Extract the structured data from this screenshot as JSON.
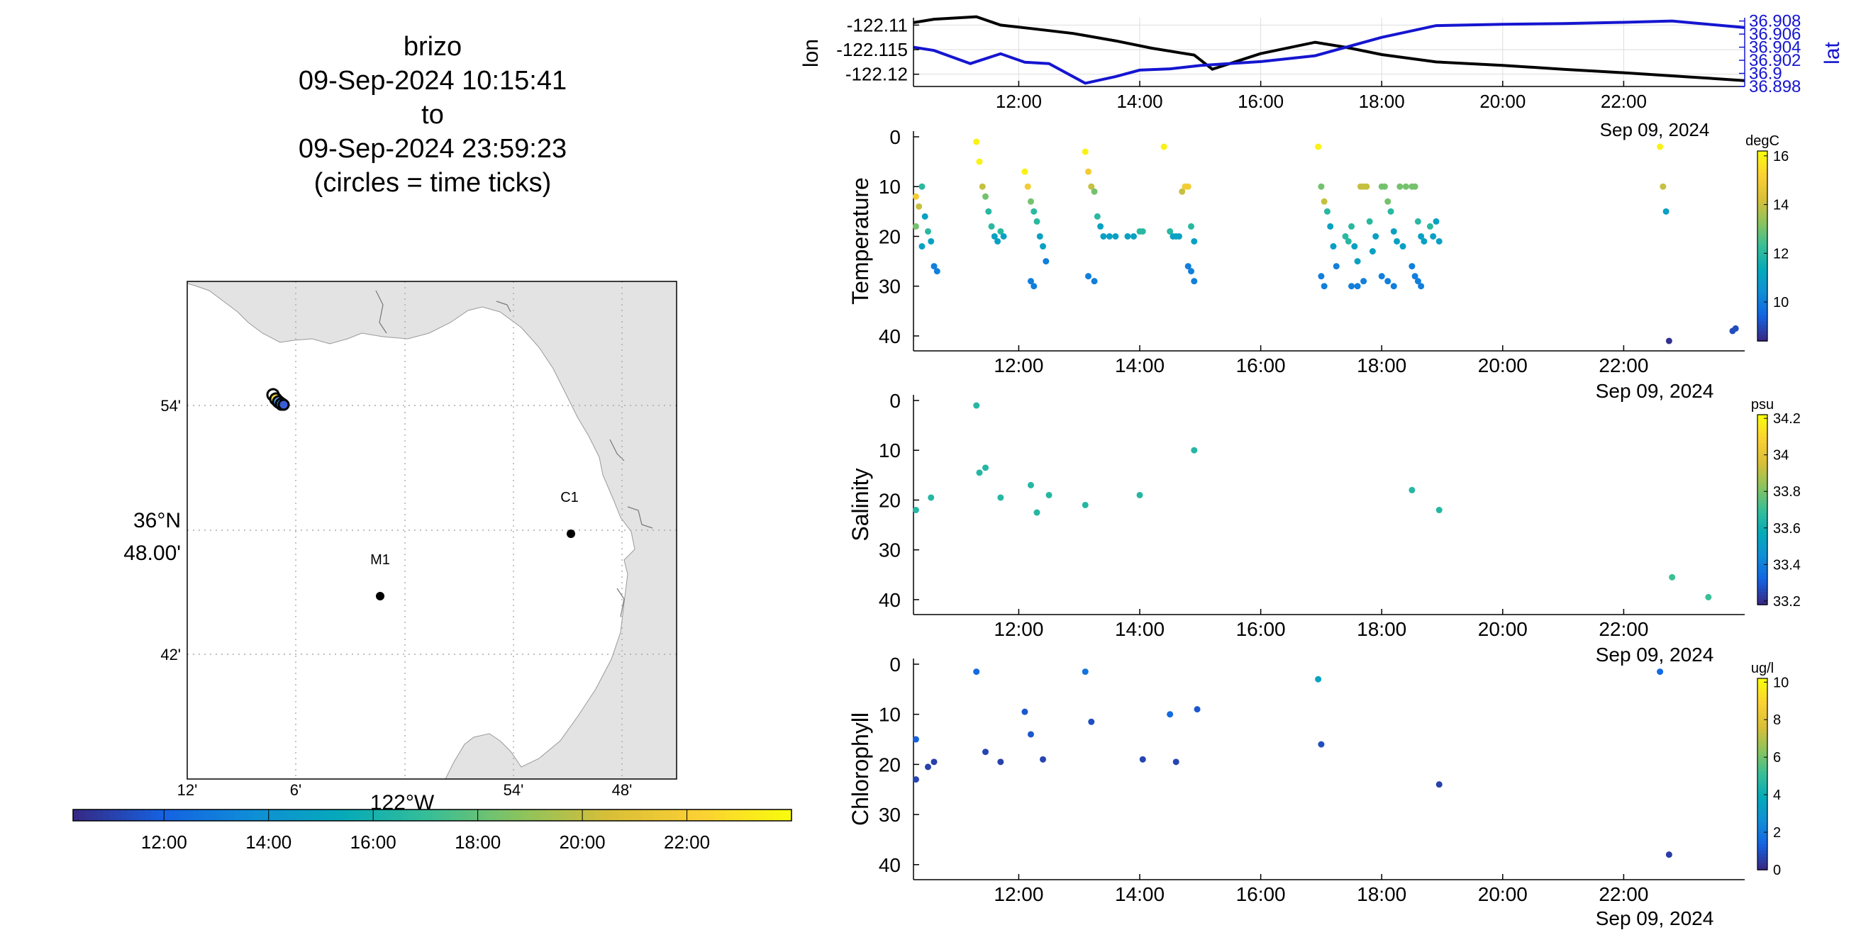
{
  "title_lines": [
    "brizo",
    "09-Sep-2024 10:15:41",
    "to",
    "09-Sep-2024 23:59:23",
    "(circles = time ticks)"
  ],
  "colors": {
    "track_lon": "#000000",
    "track_lat": "#1515d0",
    "land": "#e3e3e3",
    "grid": "#aaaaaa"
  },
  "map": {
    "lat_labels": [
      "54'",
      "42'"
    ],
    "lat_center_label": [
      "36°N",
      "48.00'"
    ],
    "lon_labels": [
      "12'",
      "6'",
      "54'",
      "48'"
    ],
    "lon_center_label": "122°W",
    "stations": [
      {
        "name": "C1",
        "lon": -121.84,
        "lat": 36.8
      },
      {
        "name": "M1",
        "lon": -122.02,
        "lat": 36.75
      }
    ],
    "vehicle_lon": -122.114,
    "vehicle_lat": 36.9
  },
  "time_colorbar": {
    "ticks": [
      "12:00",
      "14:00",
      "16:00",
      "18:00",
      "20:00",
      "22:00"
    ]
  },
  "chart_data": [
    {
      "type": "line",
      "ylabel": "lon",
      "y2label": "lat",
      "x_ticks": [
        "12:00",
        "14:00",
        "16:00",
        "18:00",
        "20:00",
        "22:00"
      ],
      "x_date_label": "Sep 09, 2024",
      "y_ticks": [
        "-122.11",
        "-122.115",
        "-122.12"
      ],
      "y2_ticks": [
        "36.908",
        "36.906",
        "36.904",
        "36.902",
        "36.9",
        "36.898"
      ],
      "xlim": [
        10.26,
        24.0
      ],
      "ylim": [
        -122.1225,
        -122.1085
      ],
      "y2lim": [
        36.898,
        36.9085
      ],
      "series": [
        {
          "name": "lon",
          "x": [
            10.26,
            10.6,
            11.3,
            11.7,
            12.2,
            12.9,
            13.6,
            14.2,
            14.9,
            15.2,
            16.0,
            16.9,
            17.4,
            18.0,
            18.9,
            20.0,
            21.0,
            22.0,
            23.0,
            24.0
          ],
          "values": [
            -122.1095,
            -122.1088,
            -122.1083,
            -122.11,
            -122.1107,
            -122.1117,
            -122.1132,
            -122.1147,
            -122.1161,
            -122.119,
            -122.1158,
            -122.1135,
            -122.1145,
            -122.116,
            -122.1175,
            -122.1182,
            -122.119,
            -122.1197,
            -122.1205,
            -122.1213
          ]
        },
        {
          "name": "lat",
          "x": [
            10.26,
            10.6,
            11.2,
            11.7,
            12.1,
            12.5,
            13.1,
            13.6,
            14.0,
            14.5,
            15.0,
            16.0,
            16.9,
            18.0,
            18.9,
            20.0,
            21.0,
            22.0,
            22.8,
            24.0
          ],
          "values": [
            36.904,
            36.9035,
            36.9015,
            36.903,
            36.9017,
            36.9015,
            36.8985,
            36.8995,
            36.9005,
            36.9007,
            36.9012,
            36.9018,
            36.9027,
            36.9055,
            36.9073,
            36.9075,
            36.9076,
            36.9078,
            36.908,
            36.907
          ]
        }
      ]
    },
    {
      "type": "scatter",
      "ylabel": "Temperature",
      "colorbar_unit": "degC",
      "colorbar_ticks": [
        "16",
        "14",
        "12",
        "10"
      ],
      "clim": [
        8.4,
        16.2
      ],
      "x_ticks": [
        "12:00",
        "14:00",
        "16:00",
        "18:00",
        "20:00",
        "22:00"
      ],
      "x_date_label": "Sep 09, 2024",
      "y_ticks": [
        "0",
        "10",
        "20",
        "30",
        "40"
      ],
      "xlim": [
        10.26,
        24.0
      ],
      "ylim": [
        0,
        43
      ],
      "points": [
        [
          10.3,
          12,
          15
        ],
        [
          10.35,
          14,
          14
        ],
        [
          10.4,
          10,
          12
        ],
        [
          10.45,
          16,
          11
        ],
        [
          10.5,
          19,
          12
        ],
        [
          10.55,
          21,
          11
        ],
        [
          10.6,
          26,
          10
        ],
        [
          10.65,
          27,
          10
        ],
        [
          10.3,
          18,
          13
        ],
        [
          10.4,
          22,
          11
        ],
        [
          11.3,
          1,
          16
        ],
        [
          11.35,
          5,
          16
        ],
        [
          11.4,
          10,
          14
        ],
        [
          11.45,
          12,
          13
        ],
        [
          11.5,
          15,
          12
        ],
        [
          11.55,
          18,
          12
        ],
        [
          11.6,
          20,
          11
        ],
        [
          11.65,
          21,
          11
        ],
        [
          11.7,
          19,
          12
        ],
        [
          11.75,
          20,
          11
        ],
        [
          12.1,
          7,
          16
        ],
        [
          12.15,
          10,
          15
        ],
        [
          12.2,
          13,
          13
        ],
        [
          12.25,
          15,
          12
        ],
        [
          12.3,
          17,
          12
        ],
        [
          12.35,
          20,
          11
        ],
        [
          12.4,
          22,
          11
        ],
        [
          12.45,
          25,
          10
        ],
        [
          12.2,
          29,
          10
        ],
        [
          12.25,
          30,
          10
        ],
        [
          13.1,
          3,
          16
        ],
        [
          13.15,
          7,
          15
        ],
        [
          13.2,
          10,
          14
        ],
        [
          13.25,
          11,
          13
        ],
        [
          13.3,
          16,
          12
        ],
        [
          13.35,
          18,
          11
        ],
        [
          13.4,
          20,
          11
        ],
        [
          13.5,
          20,
          11
        ],
        [
          13.6,
          20,
          11
        ],
        [
          13.15,
          28,
          10
        ],
        [
          13.25,
          29,
          10
        ],
        [
          13.8,
          20,
          11
        ],
        [
          13.9,
          20,
          11
        ],
        [
          14.0,
          19,
          12
        ],
        [
          14.05,
          19,
          12
        ],
        [
          14.4,
          2,
          16
        ],
        [
          14.5,
          19,
          12
        ],
        [
          14.55,
          20,
          11
        ],
        [
          14.6,
          20,
          11
        ],
        [
          14.65,
          20,
          11
        ],
        [
          14.7,
          11,
          14
        ],
        [
          14.75,
          10,
          15
        ],
        [
          14.8,
          10,
          15
        ],
        [
          14.85,
          18,
          12
        ],
        [
          14.9,
          21,
          11
        ],
        [
          14.8,
          26,
          10
        ],
        [
          14.85,
          27,
          10
        ],
        [
          14.9,
          29,
          10
        ],
        [
          16.95,
          2,
          16
        ],
        [
          17.0,
          10,
          13
        ],
        [
          17.05,
          13,
          14
        ],
        [
          17.1,
          15,
          12
        ],
        [
          17.15,
          18,
          11
        ],
        [
          17.2,
          22,
          11
        ],
        [
          17.25,
          26,
          10
        ],
        [
          17.0,
          28,
          10
        ],
        [
          17.05,
          30,
          10
        ],
        [
          17.4,
          20,
          12
        ],
        [
          17.45,
          21,
          12
        ],
        [
          17.5,
          18,
          12
        ],
        [
          17.55,
          22,
          11
        ],
        [
          17.6,
          25,
          11
        ],
        [
          17.65,
          10,
          14
        ],
        [
          17.7,
          10,
          14
        ],
        [
          17.75,
          10,
          14
        ],
        [
          17.8,
          17,
          12
        ],
        [
          17.85,
          23,
          11
        ],
        [
          17.5,
          30,
          10
        ],
        [
          17.6,
          30,
          10
        ],
        [
          17.7,
          29,
          10
        ],
        [
          17.9,
          20,
          11
        ],
        [
          18.0,
          10,
          13
        ],
        [
          18.05,
          10,
          13
        ],
        [
          18.1,
          13,
          13
        ],
        [
          18.15,
          15,
          12
        ],
        [
          18.2,
          19,
          11
        ],
        [
          18.25,
          21,
          11
        ],
        [
          18.3,
          10,
          13
        ],
        [
          18.35,
          22,
          11
        ],
        [
          18.0,
          28,
          10
        ],
        [
          18.1,
          29,
          10
        ],
        [
          18.2,
          30,
          10
        ],
        [
          18.4,
          10,
          13
        ],
        [
          18.5,
          10,
          13
        ],
        [
          18.55,
          10,
          13
        ],
        [
          18.6,
          17,
          12
        ],
        [
          18.65,
          20,
          11
        ],
        [
          18.7,
          21,
          11
        ],
        [
          18.5,
          26,
          10
        ],
        [
          18.55,
          28,
          10
        ],
        [
          18.6,
          29,
          10
        ],
        [
          18.65,
          30,
          10
        ],
        [
          18.8,
          18,
          12
        ],
        [
          18.85,
          20,
          11
        ],
        [
          18.9,
          17,
          11
        ],
        [
          18.95,
          21,
          11
        ],
        [
          22.6,
          2,
          16
        ],
        [
          22.65,
          10,
          14
        ],
        [
          22.7,
          15,
          11
        ],
        [
          22.75,
          41,
          8.5
        ],
        [
          23.8,
          39,
          9
        ],
        [
          23.85,
          38.5,
          9
        ]
      ]
    },
    {
      "type": "scatter",
      "ylabel": "Salinity",
      "colorbar_unit": "psu",
      "colorbar_ticks": [
        "34.2",
        "34",
        "33.8",
        "33.6",
        "33.4",
        "33.2"
      ],
      "clim": [
        33.18,
        34.22
      ],
      "x_ticks": [
        "12:00",
        "14:00",
        "16:00",
        "18:00",
        "20:00",
        "22:00"
      ],
      "x_date_label": "Sep 09, 2024",
      "y_ticks": [
        "0",
        "10",
        "20",
        "30",
        "40"
      ],
      "xlim": [
        10.26,
        24.0
      ],
      "ylim": [
        0,
        43
      ],
      "points": [
        [
          10.3,
          22,
          33.65
        ],
        [
          10.55,
          19.5,
          33.65
        ],
        [
          11.3,
          1,
          33.65
        ],
        [
          11.35,
          14.5,
          33.65
        ],
        [
          11.45,
          13.5,
          33.65
        ],
        [
          11.7,
          19.5,
          33.65
        ],
        [
          12.2,
          17,
          33.65
        ],
        [
          12.3,
          22.5,
          33.65
        ],
        [
          12.5,
          19,
          33.65
        ],
        [
          13.1,
          21,
          33.65
        ],
        [
          14.0,
          19,
          33.65
        ],
        [
          14.9,
          10,
          33.65
        ],
        [
          18.5,
          18,
          33.65
        ],
        [
          18.95,
          22,
          33.65
        ],
        [
          22.8,
          35.5,
          33.7
        ],
        [
          23.4,
          39.5,
          33.7
        ]
      ]
    },
    {
      "type": "scatter",
      "ylabel": "Chlorophyll",
      "colorbar_unit": "ug/l",
      "colorbar_ticks": [
        "10",
        "8",
        "6",
        "4",
        "2",
        "0"
      ],
      "clim": [
        0,
        10.2
      ],
      "x_ticks": [
        "12:00",
        "14:00",
        "16:00",
        "18:00",
        "20:00",
        "22:00"
      ],
      "x_date_label": "Sep 09, 2024",
      "y_ticks": [
        "0",
        "10",
        "20",
        "30",
        "40"
      ],
      "xlim": [
        10.26,
        24.0
      ],
      "ylim": [
        0,
        43
      ],
      "points": [
        [
          10.3,
          15,
          1.2
        ],
        [
          10.3,
          23,
          0.6
        ],
        [
          10.5,
          20.5,
          0.5
        ],
        [
          10.6,
          19.5,
          0.5
        ],
        [
          11.3,
          1.5,
          1.5
        ],
        [
          11.45,
          17.5,
          0.6
        ],
        [
          11.7,
          19.5,
          0.5
        ],
        [
          12.1,
          9.5,
          1.0
        ],
        [
          12.2,
          14,
          1.0
        ],
        [
          12.4,
          19,
          0.6
        ],
        [
          13.1,
          1.5,
          1.8
        ],
        [
          13.2,
          11.5,
          0.8
        ],
        [
          14.05,
          19,
          0.6
        ],
        [
          14.5,
          10,
          1.5
        ],
        [
          14.6,
          19.5,
          0.6
        ],
        [
          14.95,
          9,
          1.0
        ],
        [
          16.95,
          3,
          3.5
        ],
        [
          17.0,
          16,
          0.8
        ],
        [
          18.95,
          24,
          0.5
        ],
        [
          22.6,
          1.5,
          1.5
        ],
        [
          22.75,
          38,
          0.4
        ]
      ]
    }
  ]
}
